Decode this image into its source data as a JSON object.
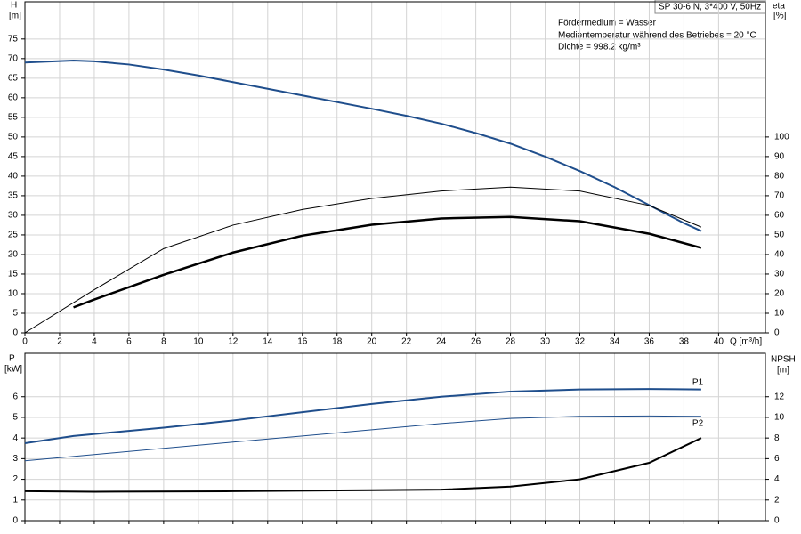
{
  "chart_data": [
    {
      "type": "line",
      "title": "SP 30-6 N, 3*400 V, 50Hz",
      "annotations": [
        "Fördermedium = Wasser",
        "Medientemperatur während des Betriebes = 20 °C",
        "Dichte = 998.2 kg/m³"
      ],
      "ylabel": "H",
      "yunit": "[m]",
      "y2label": "eta",
      "y2unit": "[%]",
      "xlabel": "Q [m³/h]",
      "xlim": [
        0,
        42.7
      ],
      "xticks": [
        0,
        2,
        4,
        6,
        8,
        10,
        12,
        14,
        16,
        18,
        20,
        22,
        24,
        26,
        28,
        30,
        32,
        34,
        36,
        38,
        40
      ],
      "ylim": [
        0,
        84.5
      ],
      "yticks": [
        0,
        5,
        10,
        15,
        20,
        25,
        30,
        35,
        40,
        45,
        50,
        55,
        60,
        65,
        70,
        75
      ],
      "y2lim": [
        0,
        169
      ],
      "y2ticks": [
        0,
        10,
        20,
        30,
        40,
        50,
        60,
        70,
        80,
        90,
        100
      ],
      "grid": true,
      "show_xtick_labels": true,
      "series": [
        {
          "color": "#1f4e8c",
          "linewidth": 2,
          "x": [
            0,
            2.8,
            4,
            6,
            8,
            10,
            12,
            14,
            16,
            18,
            20,
            22,
            24,
            26,
            28,
            30,
            32,
            34,
            36,
            38,
            39
          ],
          "values": [
            69,
            69.5,
            69.3,
            68.5,
            67.2,
            65.7,
            64,
            62.3,
            60.6,
            58.9,
            57.2,
            55.4,
            53.4,
            51,
            48.3,
            45,
            41.3,
            37.2,
            32.6,
            28,
            26
          ]
        },
        {
          "color": "#000000",
          "linewidth": 1,
          "axis": "y2",
          "x": [
            0,
            4,
            8,
            12,
            16,
            20,
            24,
            28,
            32,
            36,
            39
          ],
          "values": [
            0,
            22,
            43,
            55,
            63,
            68.6,
            72.4,
            74.4,
            72.4,
            65,
            54
          ]
        },
        {
          "color": "#000000",
          "linewidth": 2.5,
          "axis": "y2",
          "x": [
            2.8,
            4,
            8,
            12,
            16,
            20,
            24,
            28,
            32,
            36,
            39
          ],
          "values": [
            13,
            17,
            29.6,
            41,
            49.6,
            55.2,
            58.4,
            59.2,
            57,
            50.6,
            43.4
          ]
        }
      ]
    },
    {
      "type": "line",
      "ylabel": "P",
      "yunit": "[kW]",
      "y2label": "NPSH",
      "y2unit": "[m]",
      "xlim": [
        0,
        42.7
      ],
      "xticks": [
        0,
        2,
        4,
        6,
        8,
        10,
        12,
        14,
        16,
        18,
        20,
        22,
        24,
        26,
        28,
        30,
        32,
        34,
        36,
        38,
        40
      ],
      "ylim": [
        0,
        8.1
      ],
      "yticks": [
        0,
        1,
        2,
        3,
        4,
        5,
        6
      ],
      "y2lim": [
        0,
        16.2
      ],
      "y2ticks": [
        0,
        2,
        4,
        6,
        8,
        10,
        12
      ],
      "grid": true,
      "show_xtick_labels": false,
      "series": [
        {
          "name": "P1",
          "color": "#1f4e8c",
          "linewidth": 2,
          "x": [
            0,
            2.8,
            8,
            12,
            16,
            20,
            24,
            28,
            32,
            36,
            39
          ],
          "values": [
            3.75,
            4.1,
            4.5,
            4.85,
            5.25,
            5.65,
            6.0,
            6.25,
            6.35,
            6.37,
            6.35
          ]
        },
        {
          "name": "P2",
          "color": "#1f4e8c",
          "linewidth": 1,
          "x": [
            0,
            4,
            8,
            12,
            16,
            20,
            24,
            28,
            32,
            36,
            39
          ],
          "values": [
            2.9,
            3.2,
            3.5,
            3.8,
            4.1,
            4.4,
            4.7,
            4.95,
            5.05,
            5.07,
            5.05
          ]
        },
        {
          "color": "#000000",
          "linewidth": 2,
          "axis": "y2",
          "x": [
            0,
            4,
            12,
            20,
            24,
            28,
            32,
            36,
            39
          ],
          "values": [
            2.85,
            2.8,
            2.85,
            2.95,
            3.0,
            3.3,
            4.0,
            5.6,
            8.0
          ]
        }
      ]
    }
  ]
}
